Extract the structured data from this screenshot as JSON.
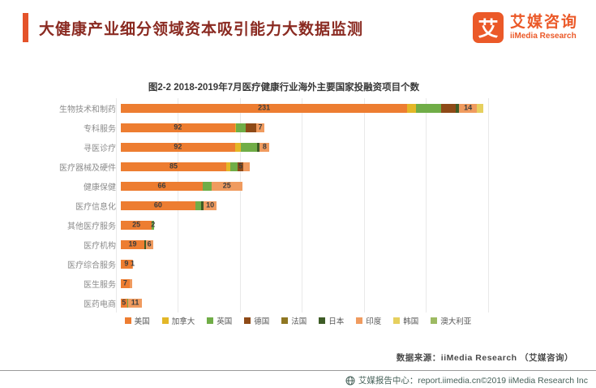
{
  "header": {
    "title": "大健康产业细分领域资本吸引能力大数据监测",
    "logo_glyph": "艾",
    "brand_name": "艾媒咨询",
    "brand_sub": "iiMedia Research"
  },
  "chart_data": {
    "type": "bar",
    "stacked": true,
    "orientation": "horizontal",
    "title": "图2-2 2018-2019年7月医疗健康行业海外主要国家投融资项目个数",
    "xlabel": "",
    "ylabel": "",
    "axis_max": 325,
    "grid_every": 50,
    "legend_position": "bottom",
    "series": [
      {
        "name": "美国",
        "color": "#ED7D31"
      },
      {
        "name": "加拿大",
        "color": "#E3B727"
      },
      {
        "name": "英国",
        "color": "#70AD47"
      },
      {
        "name": "德国",
        "color": "#8E4A17"
      },
      {
        "name": "法国",
        "color": "#8F7722"
      },
      {
        "name": "日本",
        "color": "#3E5C26"
      },
      {
        "name": "印度",
        "color": "#F09B5F"
      },
      {
        "name": "韩国",
        "color": "#E6D05E"
      },
      {
        "name": "澳大利亚",
        "color": "#9DBA62"
      }
    ],
    "rows": [
      {
        "category": "生物技术和制药",
        "segments": [
          {
            "series": "美国",
            "value": 231,
            "label": "231"
          },
          {
            "series": "加拿大",
            "value": 7
          },
          {
            "series": "英国",
            "value": 20
          },
          {
            "series": "德国",
            "value": 12
          },
          {
            "series": "日本",
            "value": 3
          },
          {
            "series": "印度",
            "value": 14,
            "label": "14"
          },
          {
            "series": "韩国",
            "value": 5
          }
        ]
      },
      {
        "category": "专科服务",
        "segments": [
          {
            "series": "美国",
            "value": 92,
            "label": "92"
          },
          {
            "series": "加拿大",
            "value": 1
          },
          {
            "series": "英国",
            "value": 8
          },
          {
            "series": "德国",
            "value": 8
          },
          {
            "series": "印度",
            "value": 7,
            "label": "7"
          }
        ]
      },
      {
        "category": "寻医诊疗",
        "segments": [
          {
            "series": "美国",
            "value": 92,
            "label": "92"
          },
          {
            "series": "加拿大",
            "value": 5
          },
          {
            "series": "英国",
            "value": 13
          },
          {
            "series": "日本",
            "value": 2
          },
          {
            "series": "印度",
            "value": 8,
            "label": "8"
          }
        ]
      },
      {
        "category": "医疗器械及硬件",
        "segments": [
          {
            "series": "美国",
            "value": 85,
            "label": "85"
          },
          {
            "series": "加拿大",
            "value": 3
          },
          {
            "series": "英国",
            "value": 6
          },
          {
            "series": "德国",
            "value": 5,
            "label": "5"
          },
          {
            "series": "印度",
            "value": 5
          }
        ]
      },
      {
        "category": "健康保健",
        "segments": [
          {
            "series": "美国",
            "value": 66,
            "label": "66"
          },
          {
            "series": "英国",
            "value": 7
          },
          {
            "series": "印度",
            "value": 25,
            "label": "25"
          }
        ]
      },
      {
        "category": "医疗信息化",
        "segments": [
          {
            "series": "美国",
            "value": 60,
            "label": "60"
          },
          {
            "series": "英国",
            "value": 5
          },
          {
            "series": "日本",
            "value": 2
          },
          {
            "series": "印度",
            "value": 10,
            "label": "10"
          }
        ]
      },
      {
        "category": "其他医疗服务",
        "segments": [
          {
            "series": "美国",
            "value": 25,
            "label": "25"
          },
          {
            "series": "英国",
            "value": 2,
            "label": "2"
          }
        ]
      },
      {
        "category": "医疗机构",
        "segments": [
          {
            "series": "美国",
            "value": 19,
            "label": "19"
          },
          {
            "series": "日本",
            "value": 1
          },
          {
            "series": "印度",
            "value": 6,
            "label": "6"
          }
        ]
      },
      {
        "category": "医疗综合服务",
        "segments": [
          {
            "series": "美国",
            "value": 9,
            "label": "9"
          },
          {
            "series": "印度",
            "value": 1,
            "label": "1"
          }
        ]
      },
      {
        "category": "医生服务",
        "segments": [
          {
            "series": "美国",
            "value": 7,
            "label": "7"
          },
          {
            "series": "印度",
            "value": 2
          }
        ]
      },
      {
        "category": "医药电商",
        "segments": [
          {
            "series": "美国",
            "value": 5,
            "label": "5"
          },
          {
            "series": "英国",
            "value": 1
          },
          {
            "series": "印度",
            "value": 11,
            "label": "11"
          }
        ]
      }
    ]
  },
  "source": "数据来源：iiMedia Research （艾媒咨询）",
  "footer": {
    "text": "艾媒报告中心：report.iimedia.cn©2019 iiMedia Research Inc"
  }
}
